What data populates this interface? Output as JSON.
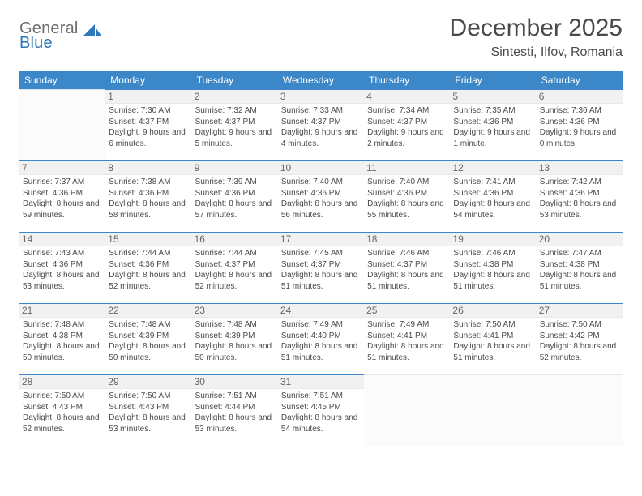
{
  "theme": {
    "header_bg": "#3b87c8",
    "header_fg": "#ffffff",
    "cell_border": "#3b87c8",
    "daynum_bg": "#f1f1f1",
    "text_color": "#4a4a4a"
  },
  "logo": {
    "word1": "General",
    "word2": "Blue"
  },
  "title": "December 2025",
  "subtitle": "Sintesti, Ilfov, Romania",
  "day_headers": [
    "Sunday",
    "Monday",
    "Tuesday",
    "Wednesday",
    "Thursday",
    "Friday",
    "Saturday"
  ],
  "weeks": [
    [
      null,
      {
        "n": "1",
        "sr": "7:30 AM",
        "ss": "4:37 PM",
        "dl": "9 hours and 6 minutes."
      },
      {
        "n": "2",
        "sr": "7:32 AM",
        "ss": "4:37 PM",
        "dl": "9 hours and 5 minutes."
      },
      {
        "n": "3",
        "sr": "7:33 AM",
        "ss": "4:37 PM",
        "dl": "9 hours and 4 minutes."
      },
      {
        "n": "4",
        "sr": "7:34 AM",
        "ss": "4:37 PM",
        "dl": "9 hours and 2 minutes."
      },
      {
        "n": "5",
        "sr": "7:35 AM",
        "ss": "4:36 PM",
        "dl": "9 hours and 1 minute."
      },
      {
        "n": "6",
        "sr": "7:36 AM",
        "ss": "4:36 PM",
        "dl": "9 hours and 0 minutes."
      }
    ],
    [
      {
        "n": "7",
        "sr": "7:37 AM",
        "ss": "4:36 PM",
        "dl": "8 hours and 59 minutes."
      },
      {
        "n": "8",
        "sr": "7:38 AM",
        "ss": "4:36 PM",
        "dl": "8 hours and 58 minutes."
      },
      {
        "n": "9",
        "sr": "7:39 AM",
        "ss": "4:36 PM",
        "dl": "8 hours and 57 minutes."
      },
      {
        "n": "10",
        "sr": "7:40 AM",
        "ss": "4:36 PM",
        "dl": "8 hours and 56 minutes."
      },
      {
        "n": "11",
        "sr": "7:40 AM",
        "ss": "4:36 PM",
        "dl": "8 hours and 55 minutes."
      },
      {
        "n": "12",
        "sr": "7:41 AM",
        "ss": "4:36 PM",
        "dl": "8 hours and 54 minutes."
      },
      {
        "n": "13",
        "sr": "7:42 AM",
        "ss": "4:36 PM",
        "dl": "8 hours and 53 minutes."
      }
    ],
    [
      {
        "n": "14",
        "sr": "7:43 AM",
        "ss": "4:36 PM",
        "dl": "8 hours and 53 minutes."
      },
      {
        "n": "15",
        "sr": "7:44 AM",
        "ss": "4:36 PM",
        "dl": "8 hours and 52 minutes."
      },
      {
        "n": "16",
        "sr": "7:44 AM",
        "ss": "4:37 PM",
        "dl": "8 hours and 52 minutes."
      },
      {
        "n": "17",
        "sr": "7:45 AM",
        "ss": "4:37 PM",
        "dl": "8 hours and 51 minutes."
      },
      {
        "n": "18",
        "sr": "7:46 AM",
        "ss": "4:37 PM",
        "dl": "8 hours and 51 minutes."
      },
      {
        "n": "19",
        "sr": "7:46 AM",
        "ss": "4:38 PM",
        "dl": "8 hours and 51 minutes."
      },
      {
        "n": "20",
        "sr": "7:47 AM",
        "ss": "4:38 PM",
        "dl": "8 hours and 51 minutes."
      }
    ],
    [
      {
        "n": "21",
        "sr": "7:48 AM",
        "ss": "4:38 PM",
        "dl": "8 hours and 50 minutes."
      },
      {
        "n": "22",
        "sr": "7:48 AM",
        "ss": "4:39 PM",
        "dl": "8 hours and 50 minutes."
      },
      {
        "n": "23",
        "sr": "7:48 AM",
        "ss": "4:39 PM",
        "dl": "8 hours and 50 minutes."
      },
      {
        "n": "24",
        "sr": "7:49 AM",
        "ss": "4:40 PM",
        "dl": "8 hours and 51 minutes."
      },
      {
        "n": "25",
        "sr": "7:49 AM",
        "ss": "4:41 PM",
        "dl": "8 hours and 51 minutes."
      },
      {
        "n": "26",
        "sr": "7:50 AM",
        "ss": "4:41 PM",
        "dl": "8 hours and 51 minutes."
      },
      {
        "n": "27",
        "sr": "7:50 AM",
        "ss": "4:42 PM",
        "dl": "8 hours and 52 minutes."
      }
    ],
    [
      {
        "n": "28",
        "sr": "7:50 AM",
        "ss": "4:43 PM",
        "dl": "8 hours and 52 minutes."
      },
      {
        "n": "29",
        "sr": "7:50 AM",
        "ss": "4:43 PM",
        "dl": "8 hours and 53 minutes."
      },
      {
        "n": "30",
        "sr": "7:51 AM",
        "ss": "4:44 PM",
        "dl": "8 hours and 53 minutes."
      },
      {
        "n": "31",
        "sr": "7:51 AM",
        "ss": "4:45 PM",
        "dl": "8 hours and 54 minutes."
      },
      null,
      null,
      null
    ]
  ],
  "labels": {
    "sunrise": "Sunrise:",
    "sunset": "Sunset:",
    "daylight": "Daylight:"
  }
}
